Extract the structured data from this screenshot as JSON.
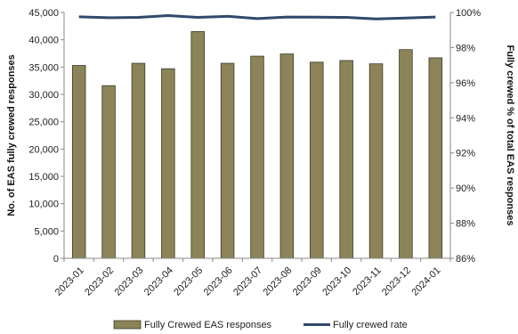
{
  "chart_data": {
    "type": "bar",
    "categories": [
      "2023-01",
      "2023-02",
      "2023-03",
      "2023-04",
      "2023-05",
      "2023-06",
      "2023-07",
      "2023-08",
      "2023-09",
      "2023-10",
      "2023-11",
      "2023-12",
      "2024-01"
    ],
    "series": [
      {
        "name": "Fully Crewed EAS responses",
        "type": "bar",
        "axis": "left",
        "color": "#8c8458",
        "values": [
          35300,
          31600,
          35700,
          34700,
          41500,
          35700,
          37000,
          37400,
          35900,
          36200,
          35600,
          38200,
          36700
        ]
      },
      {
        "name": "Fully crewed rate",
        "type": "line",
        "axis": "right",
        "color": "#2f4a6c",
        "values": [
          99.75,
          99.7,
          99.72,
          99.82,
          99.72,
          99.78,
          99.65,
          99.74,
          99.73,
          99.72,
          99.63,
          99.68,
          99.74
        ]
      }
    ],
    "ylabel": "No. of EAS fully crewed responses",
    "ylim": [
      0,
      45000
    ],
    "yticks": [
      "0",
      "5,000",
      "10,000",
      "15,000",
      "20,000",
      "25,000",
      "30,000",
      "35,000",
      "40,000",
      "45,000"
    ],
    "y2label": "Fully crewed % of  total EAS responses",
    "y2lim": [
      86,
      100
    ],
    "y2ticks": [
      "86%",
      "88%",
      "90%",
      "92%",
      "94%",
      "96%",
      "98%",
      "100%"
    ],
    "grid": false,
    "legend_position": "bottom"
  }
}
